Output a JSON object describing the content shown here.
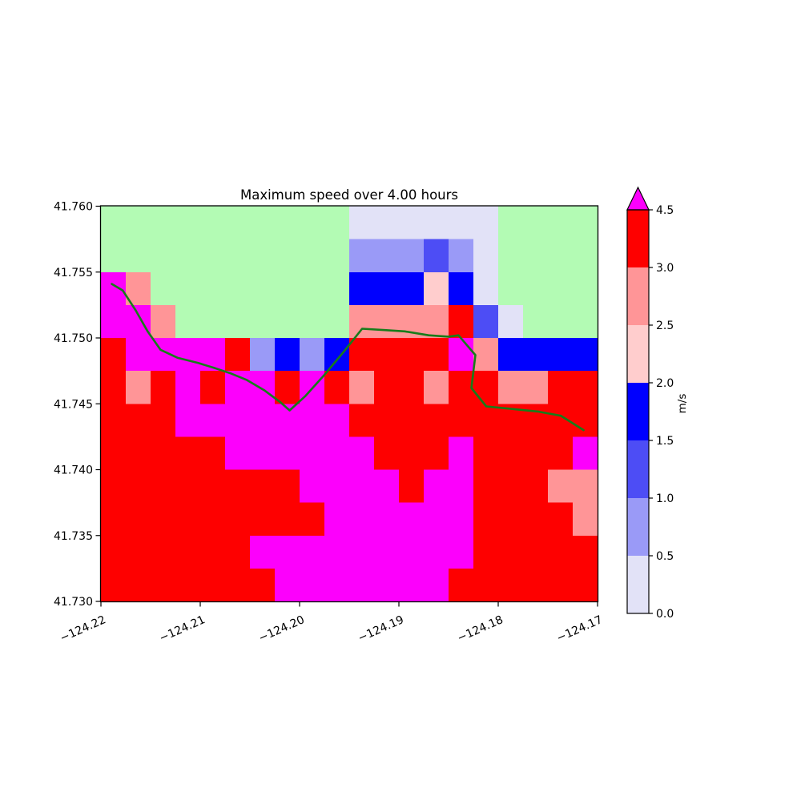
{
  "title": "Maximum speed over 4.00 hours",
  "chart_data": {
    "type": "heatmap",
    "title": "Maximum speed over 4.00 hours",
    "x_axis": {
      "tick_labels": [
        "−124.22",
        "−124.21",
        "−124.20",
        "−124.19",
        "−124.18",
        "−124.17"
      ],
      "range": [
        -124.22,
        -124.17
      ],
      "tick_rotation_deg": -24
    },
    "y_axis": {
      "tick_labels": [
        "41.730",
        "41.735",
        "41.740",
        "41.745",
        "41.750",
        "41.755",
        "41.760"
      ],
      "range": [
        41.73,
        41.76
      ]
    },
    "palette": {
      "G": "#b3fbb4",
      "L": "#e2e2f7",
      "P": "#9a9af7",
      "V": "#4d4df5",
      "B": "#0000fe",
      "K": "#ffcdcd",
      "S": "#ff9597",
      "R": "#fe0000",
      "M": "#fc00fc"
    },
    "legend": {
      "G": "masked / no data (background green)",
      "L": "0.0–0.5 m/s",
      "P": "0.5–1.0 m/s",
      "V": "1.0–1.5 m/s",
      "B": "1.5–2.0 m/s",
      "K": "2.0–2.5 m/s",
      "S": "2.5–3.0 m/s",
      "R": "3.0–4.5 m/s",
      "M": "over 4.5 m/s"
    },
    "grid": {
      "n_cols": 20,
      "n_rows": 12,
      "lon_start": -124.22,
      "lon_step": 0.0025,
      "lat_top": 41.76,
      "lat_step": 0.0025,
      "cells": [
        "GGGGGGGGGGLLLLLLGGGG",
        "GGGGGGGGGGPPPVPLGGGG",
        "MSGGGGGGGGBBBKBLGGGG",
        "MMSGGGGGGGSSSSRVLGGG",
        "RMMMMRPBPBRRRRMSBBBB",
        "RSRMRMMRMRSRRSRRSSRR",
        "RRRMMMMMMMRRRRRRRRRR",
        "RRRRRMMMMMMRRRMRRRRM",
        "RRRRRRRRMMMMRMMRRRSS",
        "RRRRRRRRRMMMMMMRRRRS",
        "RRRRRRMMMMMMMMMRRRRR",
        "RRRRRRRMMMMMMMRRRRRR"
      ]
    },
    "colorbar": {
      "label": "m/s",
      "tick_labels": [
        "0.0",
        "0.5",
        "1.0",
        "1.5",
        "2.0",
        "2.5",
        "3.0",
        "4.5"
      ],
      "bands": [
        {
          "from": 0.0,
          "to": 0.5,
          "color_key": "L"
        },
        {
          "from": 0.5,
          "to": 1.0,
          "color_key": "P"
        },
        {
          "from": 1.0,
          "to": 1.5,
          "color_key": "V"
        },
        {
          "from": 1.5,
          "to": 2.0,
          "color_key": "B"
        },
        {
          "from": 2.0,
          "to": 2.5,
          "color_key": "K"
        },
        {
          "from": 2.5,
          "to": 3.0,
          "color_key": "S"
        },
        {
          "from": 3.0,
          "to": 4.5,
          "color_key": "R"
        }
      ],
      "over_color_key": "M"
    },
    "track": {
      "name": "vehicle-track",
      "color": "#177c1a",
      "points_lonlat": [
        [
          -124.2189,
          41.7541
        ],
        [
          -124.2178,
          41.7536
        ],
        [
          -124.2165,
          41.7521
        ],
        [
          -124.2153,
          41.7505
        ],
        [
          -124.214,
          41.7491
        ],
        [
          -124.2123,
          41.7485
        ],
        [
          -124.2102,
          41.7481
        ],
        [
          -124.2085,
          41.7477
        ],
        [
          -124.2069,
          41.7473
        ],
        [
          -124.2053,
          41.7468
        ],
        [
          -124.2035,
          41.746
        ],
        [
          -124.2019,
          41.7451
        ],
        [
          -124.201,
          41.7445
        ],
        [
          -124.1994,
          41.7456
        ],
        [
          -124.1975,
          41.7472
        ],
        [
          -124.1955,
          41.749
        ],
        [
          -124.1937,
          41.7507
        ],
        [
          -124.1916,
          41.7506
        ],
        [
          -124.1894,
          41.7505
        ],
        [
          -124.187,
          41.7502
        ],
        [
          -124.185,
          41.7501
        ],
        [
          -124.184,
          41.7502
        ],
        [
          -124.1823,
          41.7487
        ],
        [
          -124.1827,
          41.7462
        ],
        [
          -124.1812,
          41.7448
        ],
        [
          -124.1785,
          41.7446
        ],
        [
          -124.1759,
          41.7444
        ],
        [
          -124.1737,
          41.7441
        ],
        [
          -124.1714,
          41.743
        ]
      ]
    }
  }
}
